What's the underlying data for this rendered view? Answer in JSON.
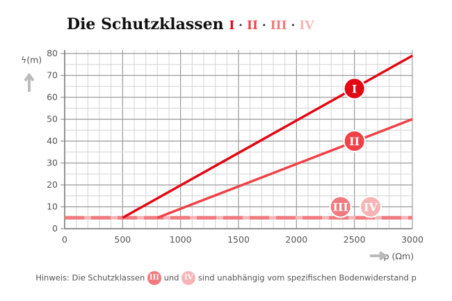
{
  "title": "Die Schutzklassen",
  "title_classes": [
    {
      "label": "I",
      "color": "#e30613"
    },
    {
      "label": "II",
      "color": "#ef4147"
    },
    {
      "label": "III",
      "color": "#f07a7e"
    },
    {
      "label": "IV",
      "color": "#f5b5b7"
    }
  ],
  "separator": "·",
  "note": {
    "prefix": "Hinweis: Die Schutzklassen",
    "badge1": "III",
    "middle": "und",
    "badge2": "IV",
    "suffix": "sind unabhängig vom spezifischen Bodenwiderstand p"
  },
  "chart_data": {
    "type": "line",
    "title": "Die Schutzklassen",
    "xlabel": "p (Ωm)",
    "ylabel": "ϟ(m)",
    "xlim": [
      0,
      3000
    ],
    "ylim": [
      0,
      80
    ],
    "xticks": [
      0,
      500,
      1000,
      1500,
      2000,
      2500,
      3000
    ],
    "yticks": [
      0,
      10,
      20,
      30,
      40,
      50,
      60,
      70,
      80
    ],
    "grid": true,
    "series": [
      {
        "name": "I",
        "color": "#e30613",
        "x": [
          500,
          3000
        ],
        "y": [
          5,
          79
        ],
        "label_at": [
          2500,
          64
        ]
      },
      {
        "name": "II",
        "color": "#ef4147",
        "x": [
          800,
          3000
        ],
        "y": [
          5,
          50
        ],
        "label_at": [
          2500,
          40
        ]
      },
      {
        "name": "III",
        "color": "#f07a7e",
        "x": [
          0,
          3000
        ],
        "y": [
          5,
          5
        ],
        "label_at": [
          2380,
          10
        ]
      },
      {
        "name": "IV",
        "color": "#f5b5b7",
        "x": [
          0,
          3000
        ],
        "y": [
          5,
          5
        ],
        "label_at": [
          2640,
          10
        ]
      }
    ]
  }
}
